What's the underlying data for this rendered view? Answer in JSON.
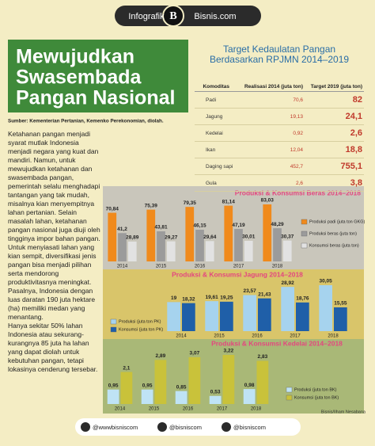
{
  "header": {
    "label": "Infografik",
    "logo": "B",
    "site": "Bisnis.com"
  },
  "title": [
    "Mewujudkan",
    "Swasembada",
    "Pangan Nasional"
  ],
  "source": "Sumber: Kementerian Pertanian, Kemenko Perekonomian, diolah.",
  "body": [
    "Ketahanan pangan menjadi syarat mutlak Indonesia menjadi negara yang kuat dan mandiri. Namun, untuk mewujudkan ketahanan dan swasembada pangan, pemerintah selalu menghadapi tantangan yang tak mudah, misalnya kian menyempitnya lahan pertanian. Selain masalah lahan, ketahanan pangan nasional juga diuji oleh tingginya impor bahan pangan.",
    "Untuk menyiasati lahan yang kian sempit, diversifikasi jenis pangan bisa menjadi pilihan serta mendorong produktivitasnya meningkat. Pasalnya, Indonesia dengan luas daratan 190 juta hektare (ha) memiliki medan yang menantang.",
    "Hanya sekitar 50% lahan Indonesia atau sekurang-kurangnya 85 juta ha lahan yang dapat diolah untuk kebutuhan pangan, tetapi lokasinya cenderung tersebar."
  ],
  "table": {
    "title": "Target Kedaulatan Pangan Berdasarkan RPJMN 2014–2019",
    "columns": [
      "Komoditas",
      "Realisasi 2014 (juta ton)",
      "Target 2019 (juta ton)"
    ],
    "rows": [
      [
        "Padi",
        "70,6",
        "82"
      ],
      [
        "Jagung",
        "19,13",
        "24,1"
      ],
      [
        "Kedelai",
        "0,92",
        "2,6"
      ],
      [
        "Ikan",
        "12,04",
        "18,8"
      ],
      [
        "Daging sapi",
        "452,7",
        "755,1"
      ],
      [
        "Gula",
        "2,6",
        "3,8"
      ]
    ]
  },
  "chart_data": [
    {
      "type": "bar",
      "title": "Produksi & Konsumsi Beras 2014–2018",
      "categories": [
        "2014",
        "2015",
        "2016",
        "2017",
        "2018"
      ],
      "series": [
        {
          "name": "Produksi padi (juta ton GKG)",
          "color": "#f08a1c",
          "values": [
            70.84,
            75.39,
            79.35,
            81.14,
            83.03
          ],
          "value_labels": [
            "70,84",
            "75,39",
            "79,35",
            "81,14",
            "83,03"
          ]
        },
        {
          "name": "Produksi beras (juta ton)",
          "color": "#9b9b9b",
          "values": [
            41.2,
            43.81,
            46.15,
            47.19,
            48.29
          ],
          "value_labels": [
            "41,2",
            "43,81",
            "46,15",
            "47,19",
            "48,29"
          ]
        },
        {
          "name": "Konsumsi beras (juta ton)",
          "color": "#e2e2e2",
          "values": [
            28.89,
            29.27,
            29.64,
            30.01,
            30.37
          ],
          "value_labels": [
            "28,89",
            "29,27",
            "29,64",
            "30,01",
            "30,37"
          ]
        }
      ]
    },
    {
      "type": "bar",
      "title": "Produksi & Konsumsi Jagung 2014–2018",
      "categories": [
        "2014",
        "2015",
        "2016",
        "2017",
        "2018"
      ],
      "series": [
        {
          "name": "Produksi (juta ton PK)",
          "color": "#a6d3ee",
          "values": [
            19,
            19.61,
            23.57,
            28.92,
            30.05
          ],
          "value_labels": [
            "19",
            "19,61",
            "23,57",
            "28,92",
            "30,05"
          ]
        },
        {
          "name": "Konsumsi (juta ton PK)",
          "color": "#1f5fa8",
          "values": [
            18.32,
            19.25,
            21.43,
            18.76,
            15.55
          ],
          "value_labels": [
            "18,32",
            "19,25",
            "21,43",
            "18,76",
            "15,55"
          ]
        }
      ]
    },
    {
      "type": "bar",
      "title": "Produksi & Konsumsi Kedelai 2014–2018",
      "categories": [
        "2014",
        "2015",
        "2016",
        "2017",
        "2018"
      ],
      "series": [
        {
          "name": "Produksi (juta ton BK)",
          "color": "#bfe3f5",
          "values": [
            0.95,
            0.95,
            0.85,
            0.53,
            0.98
          ],
          "value_labels": [
            "0,95",
            "0,95",
            "0,85",
            "0,53",
            "0,98"
          ]
        },
        {
          "name": "Konsumsi (juta ton BK)",
          "color": "#c9c23a",
          "values": [
            2.1,
            2.89,
            3.07,
            3.22,
            2.83
          ],
          "value_labels": [
            "2,1",
            "2,89",
            "3,07",
            "3,22",
            "2,83"
          ]
        }
      ]
    }
  ],
  "credit": "Bisnis/Ilham Nesabana",
  "footer": [
    "@wwwbisniscom",
    "@bisniscom",
    "@bisniscom"
  ]
}
